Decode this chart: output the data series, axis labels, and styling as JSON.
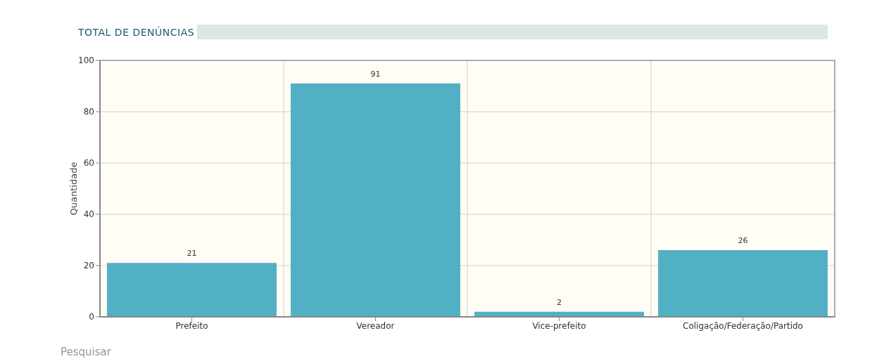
{
  "chart_data": {
    "type": "bar",
    "title": "TOTAL DE DENÚNCIAS",
    "ylabel": "Quantidade",
    "categories": [
      "Prefeito",
      "Vereador",
      "Vice-prefeito",
      "Coligação/Federação/Partido"
    ],
    "values": [
      21,
      91,
      2,
      26
    ],
    "color": "#52b0c5",
    "ylim": [
      0,
      100
    ],
    "yticks": [
      0,
      20,
      40,
      60,
      80,
      100
    ],
    "grid": true,
    "data_labels": true,
    "annotations": [
      "Pesquisar"
    ]
  }
}
